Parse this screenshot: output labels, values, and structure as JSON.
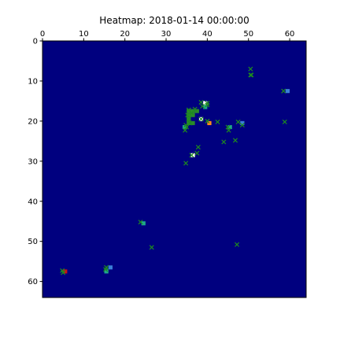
{
  "chart_data": {
    "type": "heatmap",
    "title": "Heatmap: 2018-01-14 00:00:00",
    "xlabel": "",
    "ylabel": "",
    "xlim": [
      0,
      64
    ],
    "ylim": [
      64,
      0
    ],
    "x_ticks": [
      0,
      10,
      20,
      30,
      40,
      50,
      60
    ],
    "y_ticks": [
      0,
      10,
      20,
      30,
      40,
      50,
      60
    ],
    "x_tick_labels": [
      "0",
      "10",
      "20",
      "30",
      "40",
      "50",
      "60"
    ],
    "y_tick_labels": [
      "0",
      "10",
      "20",
      "30",
      "40",
      "50",
      "60"
    ],
    "x_axis_position": "top",
    "grid": false,
    "background_color": "#00007f",
    "cells": [
      {
        "x": 39,
        "y": 15,
        "color": "#ffffff"
      },
      {
        "x": 38,
        "y": 19,
        "color": "#ffffff"
      },
      {
        "x": 36,
        "y": 28,
        "color": "#ffffff"
      },
      {
        "x": 40,
        "y": 20,
        "color": "#ff8c1a"
      },
      {
        "x": 5,
        "y": 57,
        "color": "#c81414"
      },
      {
        "x": 35,
        "y": 17,
        "color": "#2a8a2a"
      },
      {
        "x": 36,
        "y": 17,
        "color": "#2a8a2a"
      },
      {
        "x": 37,
        "y": 17,
        "color": "#2a8a2a"
      },
      {
        "x": 35,
        "y": 18,
        "color": "#2a8a2a"
      },
      {
        "x": 36,
        "y": 18,
        "color": "#2a8a2a"
      },
      {
        "x": 35,
        "y": 19,
        "color": "#2a8a2a"
      },
      {
        "x": 35,
        "y": 20,
        "color": "#2a8a2a"
      },
      {
        "x": 36,
        "y": 20,
        "color": "#2a8a2a"
      },
      {
        "x": 34,
        "y": 21,
        "color": "#1fa88a"
      },
      {
        "x": 39,
        "y": 16,
        "color": "#1fa88a"
      },
      {
        "x": 59,
        "y": 12,
        "color": "#3a7fd8"
      },
      {
        "x": 48,
        "y": 20,
        "color": "#3a7fd8"
      },
      {
        "x": 45,
        "y": 21,
        "color": "#1fa88a"
      },
      {
        "x": 24,
        "y": 45,
        "color": "#1fa88a"
      },
      {
        "x": 16,
        "y": 56,
        "color": "#3a7fd8"
      },
      {
        "x": 15,
        "y": 57,
        "color": "#1fa88a"
      }
    ],
    "markers": [
      {
        "x": 50.5,
        "y": 7
      },
      {
        "x": 50.5,
        "y": 8.5
      },
      {
        "x": 50.7,
        "y": 8.5
      },
      {
        "x": 58.5,
        "y": 12.5
      },
      {
        "x": 38.5,
        "y": 15.3
      },
      {
        "x": 40,
        "y": 15.5
      },
      {
        "x": 38.8,
        "y": 16.3
      },
      {
        "x": 40,
        "y": 16
      },
      {
        "x": 37,
        "y": 17
      },
      {
        "x": 35.5,
        "y": 17.2
      },
      {
        "x": 36.2,
        "y": 18
      },
      {
        "x": 35.2,
        "y": 18.5
      },
      {
        "x": 35.5,
        "y": 19.5
      },
      {
        "x": 35.8,
        "y": 20.5
      },
      {
        "x": 34.8,
        "y": 21
      },
      {
        "x": 35,
        "y": 21.5
      },
      {
        "x": 34.6,
        "y": 22.3
      },
      {
        "x": 38.5,
        "y": 19.5
      },
      {
        "x": 40,
        "y": 20
      },
      {
        "x": 42.5,
        "y": 20.2
      },
      {
        "x": 47.5,
        "y": 20.2
      },
      {
        "x": 48.5,
        "y": 21
      },
      {
        "x": 58.8,
        "y": 20.2
      },
      {
        "x": 45,
        "y": 21.5
      },
      {
        "x": 45.2,
        "y": 22.3
      },
      {
        "x": 46.8,
        "y": 24.8
      },
      {
        "x": 44,
        "y": 25.2
      },
      {
        "x": 37.8,
        "y": 26.5
      },
      {
        "x": 37.5,
        "y": 28
      },
      {
        "x": 36.2,
        "y": 28.5
      },
      {
        "x": 34.8,
        "y": 30.5
      },
      {
        "x": 23.8,
        "y": 45.2
      },
      {
        "x": 26.5,
        "y": 51.5
      },
      {
        "x": 47.2,
        "y": 50.8
      },
      {
        "x": 15.5,
        "y": 56.5
      },
      {
        "x": 15.3,
        "y": 57
      },
      {
        "x": 4.8,
        "y": 57.3
      },
      {
        "x": 5,
        "y": 57.8
      }
    ],
    "marker_style": "x",
    "marker_color": "#1e8c1e"
  }
}
